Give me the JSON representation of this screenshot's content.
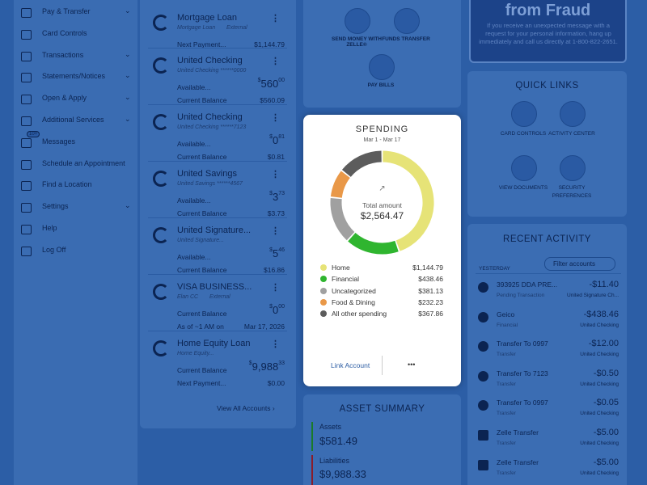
{
  "sidebar": {
    "items": [
      {
        "label": "Pay & Transfer",
        "chevron": true
      },
      {
        "label": "Card Controls",
        "chevron": false
      },
      {
        "label": "Transactions",
        "chevron": true
      },
      {
        "label": "Statements/Notices",
        "chevron": true
      },
      {
        "label": "Open & Apply",
        "chevron": true
      },
      {
        "label": "Additional Services",
        "chevron": true
      },
      {
        "label": "Messages",
        "chevron": false
      },
      {
        "label": "Schedule an Appointment",
        "chevron": false
      },
      {
        "label": "Find a Location",
        "chevron": false
      },
      {
        "label": "Settings",
        "chevron": true
      },
      {
        "label": "Help",
        "chevron": false
      },
      {
        "label": "Log Off",
        "chevron": false
      }
    ],
    "badge": "10+"
  },
  "accounts": {
    "items": [
      {
        "name": "Mortgage Loan",
        "sub": "Mortgage Loan",
        "external": "External",
        "rows": [
          {
            "label": "Next Payment...",
            "value": "$1,144.79"
          }
        ]
      },
      {
        "name": "United Checking",
        "sub": "United Checking ******0000",
        "rows": [
          {
            "label": "Available...",
            "sup": "$",
            "whole": "560",
            "cents": "00"
          },
          {
            "label": "Current Balance",
            "value": "$560.09"
          }
        ]
      },
      {
        "name": "United Checking",
        "sub": "United Checking ******7123",
        "rows": [
          {
            "label": "Available...",
            "sup": "$",
            "whole": "0",
            "cents": "81"
          },
          {
            "label": "Current Balance",
            "value": "$0.81"
          }
        ]
      },
      {
        "name": "United Savings",
        "sub": "United Savings ******4567",
        "rows": [
          {
            "label": "Available...",
            "sup": "$",
            "whole": "3",
            "cents": "73"
          },
          {
            "label": "Current Balance",
            "value": "$3.73"
          }
        ]
      },
      {
        "name": "United Signature...",
        "sub": "United Signature...",
        "rows": [
          {
            "label": "Available...",
            "sup": "$",
            "whole": "5",
            "cents": "46"
          },
          {
            "label": "Current Balance",
            "value": "$16.86"
          }
        ]
      },
      {
        "name": "VISA BUSINESS...",
        "sub": "Elan CC",
        "external": "External",
        "rows": [
          {
            "label": "Current Balance",
            "sup": "$",
            "whole": "0",
            "cents": "00"
          },
          {
            "label": "As of ~1 AM on",
            "value": "Mar 17, 2026"
          }
        ]
      },
      {
        "name": "Home Equity Loan",
        "sub": "Home Equity...",
        "rows": [
          {
            "label": "Current Balance",
            "sup": "$",
            "whole": "9,988",
            "cents": "33"
          },
          {
            "label": "Next Payment...",
            "value": "$0.00"
          }
        ]
      }
    ],
    "footer": "View All Accounts ›"
  },
  "actions": [
    "SEND MONEY WITH ZELLE®",
    "FUNDS TRANSFER",
    "PAY BILLS"
  ],
  "spending": {
    "title": "SPENDING",
    "period": "Mar 1 - Mar 17",
    "total_label": "Total amount",
    "total": "$2,564.47",
    "items": [
      {
        "name": "Home",
        "amount": 1144.79,
        "amount_label": "$1,144.79",
        "color": "#e6e377"
      },
      {
        "name": "Financial",
        "amount": 438.46,
        "amount_label": "$438.46",
        "color": "#2fb52f"
      },
      {
        "name": "Uncategorized",
        "amount": 381.13,
        "amount_label": "$381.13",
        "color": "#a0a0a0"
      },
      {
        "name": "Food & Dining",
        "amount": 232.23,
        "amount_label": "$232.23",
        "color": "#e99848"
      },
      {
        "name": "All other spending",
        "amount": 367.86,
        "amount_label": "$367.86",
        "color": "#5c5c5c"
      }
    ],
    "link": "Link Account",
    "more": "•••"
  },
  "asset_summary": {
    "title": "ASSET SUMMARY",
    "assets_label": "Assets",
    "assets": "$581.49",
    "liabilities_label": "Liabilities",
    "liabilities": "$9,988.33"
  },
  "fraud": {
    "title": "from Fraud",
    "text": "If you receive an unexpected message with a request for your personal information, hang up immediately and call us directly at 1-800-822-2651."
  },
  "quick_links": {
    "title": "QUICK LINKS",
    "items": [
      "CARD CONTROLS",
      "ACTIVITY CENTER",
      "VIEW DOCUMENTS",
      "SECURITY PREFERENCES"
    ]
  },
  "recent_activity": {
    "title": "RECENT ACTIVITY",
    "filter": "Filter accounts",
    "day": "YESTERDAY",
    "items": [
      {
        "name": "393925 DDA PRE...",
        "category": "Pending Transaction",
        "amount": "-$11.40",
        "account": "United Signature Ch..."
      },
      {
        "name": "Geico",
        "category": "Financial",
        "amount": "-$438.46",
        "account": "United Checking"
      },
      {
        "name": "Transfer To 0997",
        "category": "Transfer",
        "amount": "-$12.00",
        "account": "United Checking"
      },
      {
        "name": "Transfer To 7123",
        "category": "Transfer",
        "amount": "-$0.50",
        "account": "United Checking"
      },
      {
        "name": "Transfer To 0997",
        "category": "Transfer",
        "amount": "-$0.05",
        "account": "United Checking"
      },
      {
        "name": "Zelle Transfer",
        "category": "Transfer",
        "amount": "-$5.00",
        "account": "United Checking"
      },
      {
        "name": "Zelle Transfer",
        "category": "Transfer",
        "amount": "-$5.00",
        "account": "United Checking"
      }
    ]
  }
}
